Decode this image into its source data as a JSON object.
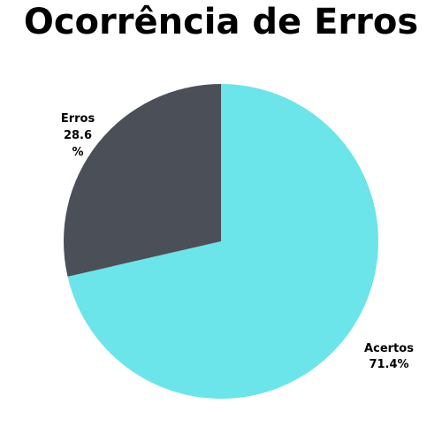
{
  "chart_data": {
    "type": "pie",
    "title": "Ocorrência de Erros",
    "slices": [
      {
        "label": "Acertos",
        "value": 71.4,
        "display_value": "71.4%",
        "color": "#6be4ea"
      },
      {
        "label": "Erros",
        "value": 28.6,
        "display_value_lines": [
          "28.6",
          "%"
        ],
        "color": "#4a4f58"
      }
    ]
  }
}
